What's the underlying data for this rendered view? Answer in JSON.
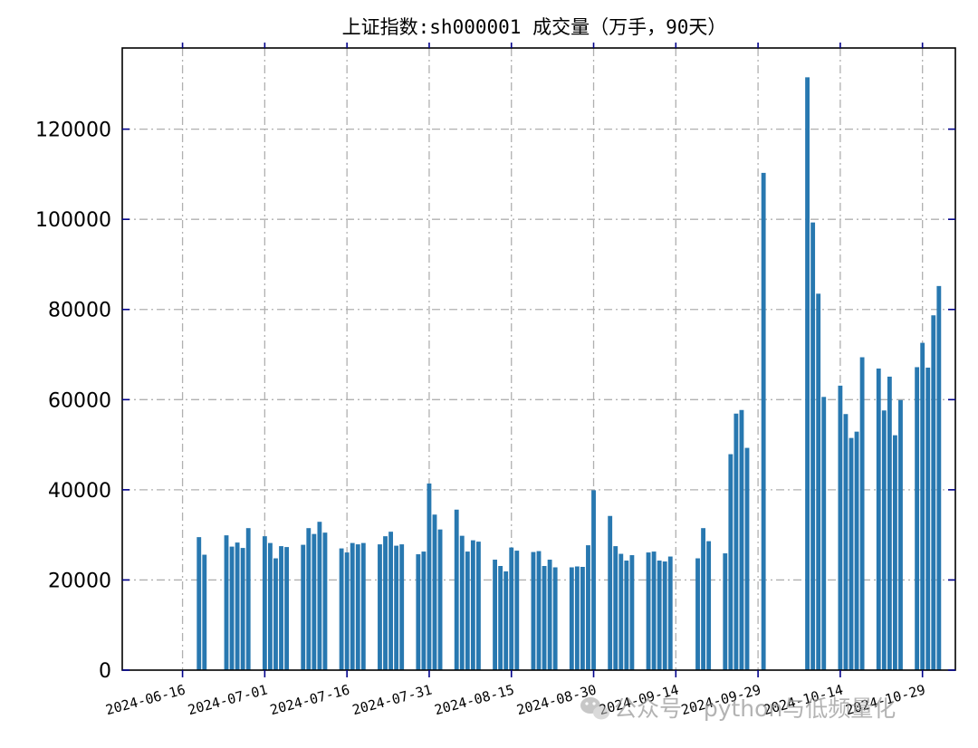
{
  "chart_data": {
    "type": "bar",
    "title": "上证指数:sh000001 成交量（万手，90天）",
    "xlabel": "",
    "ylabel": "",
    "ylim": [
      0,
      138000
    ],
    "y_ticks": [
      0,
      20000,
      40000,
      60000,
      80000,
      100000,
      120000
    ],
    "x_tick_labels": [
      "2024-06-16",
      "2024-07-01",
      "2024-07-16",
      "2024-07-31",
      "2024-08-15",
      "2024-08-30",
      "2024-09-14",
      "2024-09-29",
      "2024-10-14",
      "2024-10-29"
    ],
    "grid": true,
    "bar_color": "#2878b0",
    "grid_color": "#b0b0b0",
    "tick_color": "#00008b",
    "dates": [
      "2024-06-19",
      "2024-06-20",
      "2024-06-24",
      "2024-06-25",
      "2024-06-26",
      "2024-06-27",
      "2024-06-28",
      "2024-07-01",
      "2024-07-02",
      "2024-07-03",
      "2024-07-04",
      "2024-07-05",
      "2024-07-08",
      "2024-07-09",
      "2024-07-10",
      "2024-07-11",
      "2024-07-12",
      "2024-07-15",
      "2024-07-16",
      "2024-07-17",
      "2024-07-18",
      "2024-07-19",
      "2024-07-22",
      "2024-07-23",
      "2024-07-24",
      "2024-07-25",
      "2024-07-26",
      "2024-07-29",
      "2024-07-30",
      "2024-07-31",
      "2024-08-01",
      "2024-08-02",
      "2024-08-05",
      "2024-08-06",
      "2024-08-07",
      "2024-08-08",
      "2024-08-09",
      "2024-08-12",
      "2024-08-13",
      "2024-08-14",
      "2024-08-15",
      "2024-08-16",
      "2024-08-19",
      "2024-08-20",
      "2024-08-21",
      "2024-08-22",
      "2024-08-23",
      "2024-08-26",
      "2024-08-27",
      "2024-08-28",
      "2024-08-29",
      "2024-08-30",
      "2024-09-02",
      "2024-09-03",
      "2024-09-04",
      "2024-09-05",
      "2024-09-06",
      "2024-09-09",
      "2024-09-10",
      "2024-09-11",
      "2024-09-12",
      "2024-09-13",
      "2024-09-18",
      "2024-09-19",
      "2024-09-20",
      "2024-09-23",
      "2024-09-24",
      "2024-09-25",
      "2024-09-26",
      "2024-09-27",
      "2024-09-30",
      "2024-10-08",
      "2024-10-09",
      "2024-10-10",
      "2024-10-11",
      "2024-10-14",
      "2024-10-15",
      "2024-10-16",
      "2024-10-17",
      "2024-10-18",
      "2024-10-21",
      "2024-10-22",
      "2024-10-23",
      "2024-10-24",
      "2024-10-25",
      "2024-10-28",
      "2024-10-29",
      "2024-10-30",
      "2024-10-31",
      "2024-11-01"
    ],
    "values": [
      29500,
      25600,
      29900,
      27400,
      28300,
      27100,
      31500,
      29700,
      28200,
      24800,
      27500,
      27300,
      27800,
      31500,
      30200,
      32900,
      30500,
      27000,
      26100,
      28200,
      27900,
      28200,
      27900,
      29700,
      30700,
      27600,
      27900,
      25700,
      26300,
      41400,
      34500,
      31200,
      35600,
      29800,
      26300,
      28800,
      28500,
      24500,
      23100,
      21900,
      27200,
      26500,
      26200,
      26400,
      23100,
      24500,
      22800,
      22800,
      23000,
      22900,
      27700,
      39900,
      34200,
      27500,
      25800,
      24300,
      25500,
      26100,
      26300,
      24300,
      24100,
      25200,
      24800,
      31500,
      28600,
      25900,
      47900,
      56900,
      57700,
      49300,
      110300,
      131500,
      99300,
      83500,
      60600,
      63100,
      56800,
      51500,
      52900,
      69400,
      66900,
      57600,
      65100,
      52100,
      59900,
      67200,
      72600,
      67100,
      78700,
      85200
    ]
  },
  "watermark": {
    "icon": "wechat-icon",
    "text": "公众号 · python与低频量化"
  }
}
